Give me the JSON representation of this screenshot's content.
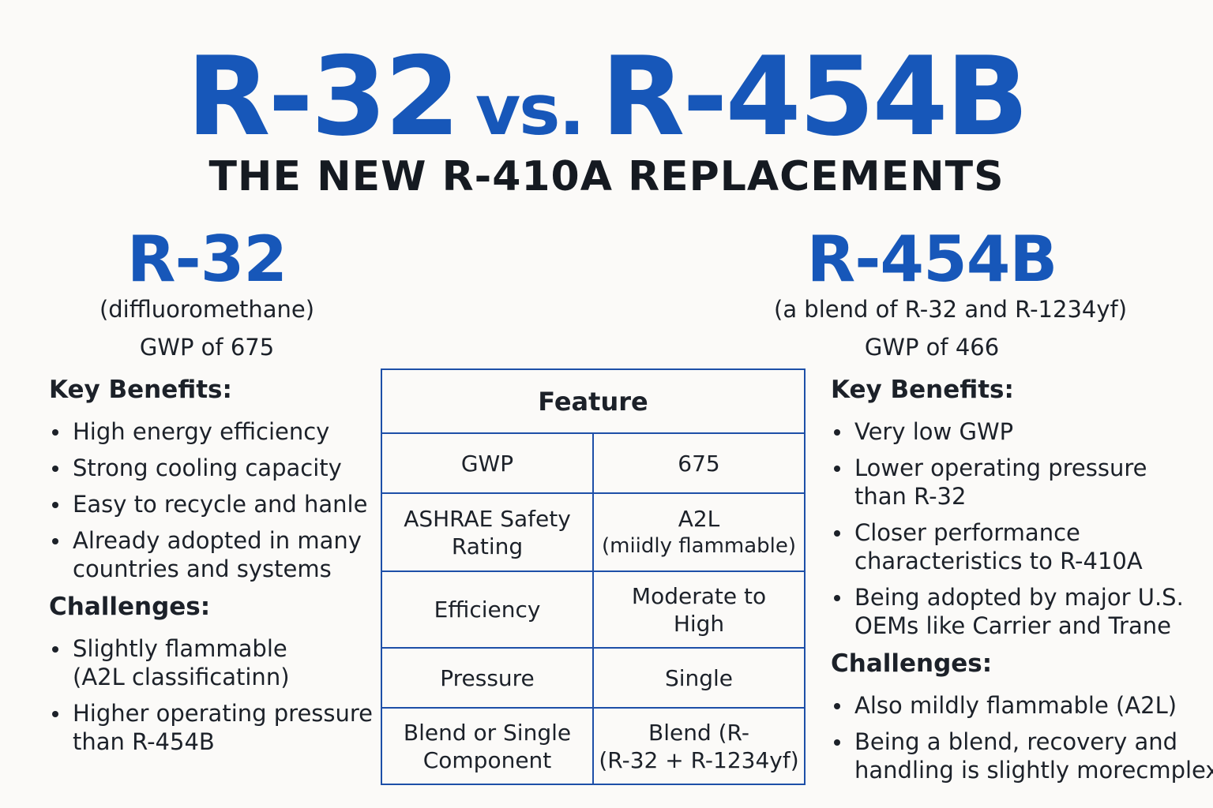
{
  "header": {
    "title": [
      "R-32",
      "vs.",
      "R-454B"
    ],
    "subtitle": "THE NEW R-410A REPLACEMENTS"
  },
  "left": {
    "name": "R-32",
    "description": "(diffluoromethane)",
    "gwp": "GWP of 675",
    "benefits_heading": "Key Benefits:",
    "benefits": [
      [
        "High energy efficiency"
      ],
      [
        "Strong cooling capacity"
      ],
      [
        "Easy to recycle and hanle"
      ],
      [
        "Already adopted in many",
        "countries and systems"
      ]
    ],
    "challenges_heading": "Challenges:",
    "challenges": [
      [
        "Slightly flammable",
        "(A2L classificatinn)"
      ],
      [
        "Higher operating pressure",
        "than R-454B"
      ]
    ]
  },
  "right": {
    "name": "R-454B",
    "description": "(a blend of R-32 and R-1234yf)",
    "gwp": "GWP of 466",
    "benefits_heading": "Key Benefits:",
    "benefits": [
      [
        "Very low GWP"
      ],
      [
        "Lower operating pressure",
        "than R-32"
      ],
      [
        "Closer performance",
        "characteristics to R-410A"
      ],
      [
        "Being adopted by major U.S.",
        "OEMs like Carrier and Trane"
      ]
    ],
    "challenges_heading": "Challenges:",
    "challenges": [
      [
        "Also mildly flammable (A2L)"
      ],
      [
        "Being a blend, recovery and",
        "handling is slightly morecmplex"
      ]
    ]
  },
  "table": {
    "header": "Feature",
    "rows": [
      [
        [
          "GWP"
        ],
        [
          "675"
        ]
      ],
      [
        [
          "ASHRAE Safety",
          "Rating"
        ],
        [
          "A2L",
          "(miidly flammable)"
        ]
      ],
      [
        [
          "Efficiency"
        ],
        [
          "Moderate to",
          "High"
        ]
      ],
      [
        [
          "Pressure"
        ],
        [
          "Single"
        ]
      ],
      [
        [
          "Blend or Single",
          "Component"
        ],
        [
          "Blend (R-",
          "(R-32 + R-1234yf)"
        ]
      ]
    ]
  }
}
